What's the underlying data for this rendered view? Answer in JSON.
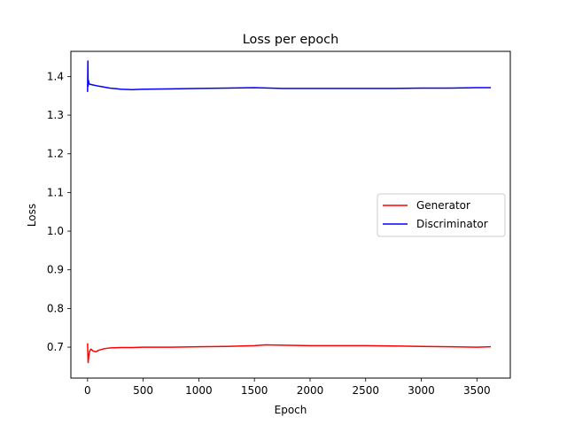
{
  "chart_data": {
    "type": "line",
    "title": "Loss per epoch",
    "xlabel": "Epoch",
    "ylabel": "Loss",
    "xlim": [
      -150,
      3800
    ],
    "ylim": [
      0.62,
      1.465
    ],
    "xticks": [
      0,
      500,
      1000,
      1500,
      2000,
      2500,
      3000,
      3500
    ],
    "xtick_labels": [
      "0",
      "500",
      "1000",
      "1500",
      "2000",
      "2500",
      "3000",
      "3500"
    ],
    "yticks": [
      0.7,
      0.8,
      0.9,
      1.0,
      1.1,
      1.2,
      1.3,
      1.4
    ],
    "ytick_labels": [
      "0.7",
      "0.8",
      "0.9",
      "1.0",
      "1.1",
      "1.2",
      "1.3",
      "1.4"
    ],
    "grid": false,
    "legend_position": "center-right",
    "series": [
      {
        "name": "Generator",
        "color": "#ff0000",
        "x": [
          0,
          5,
          10,
          20,
          30,
          50,
          75,
          100,
          150,
          200,
          300,
          400,
          500,
          750,
          1000,
          1250,
          1500,
          1600,
          1750,
          2000,
          2250,
          2500,
          2750,
          3000,
          3250,
          3500,
          3625
        ],
        "values": [
          0.71,
          0.66,
          0.675,
          0.69,
          0.695,
          0.69,
          0.688,
          0.692,
          0.696,
          0.698,
          0.699,
          0.699,
          0.7,
          0.7,
          0.701,
          0.702,
          0.704,
          0.706,
          0.705,
          0.704,
          0.704,
          0.704,
          0.703,
          0.702,
          0.701,
          0.7,
          0.701
        ]
      },
      {
        "name": "Discriminator",
        "color": "#0000ff",
        "x": [
          0,
          3,
          5,
          8,
          12,
          20,
          50,
          100,
          200,
          300,
          400,
          500,
          750,
          1000,
          1250,
          1500,
          1750,
          2000,
          2250,
          2500,
          2750,
          3000,
          3250,
          3500,
          3625
        ],
        "values": [
          1.36,
          1.44,
          1.375,
          1.39,
          1.382,
          1.38,
          1.378,
          1.375,
          1.37,
          1.367,
          1.366,
          1.367,
          1.368,
          1.369,
          1.37,
          1.371,
          1.369,
          1.369,
          1.369,
          1.369,
          1.369,
          1.37,
          1.37,
          1.371,
          1.371
        ]
      }
    ]
  }
}
